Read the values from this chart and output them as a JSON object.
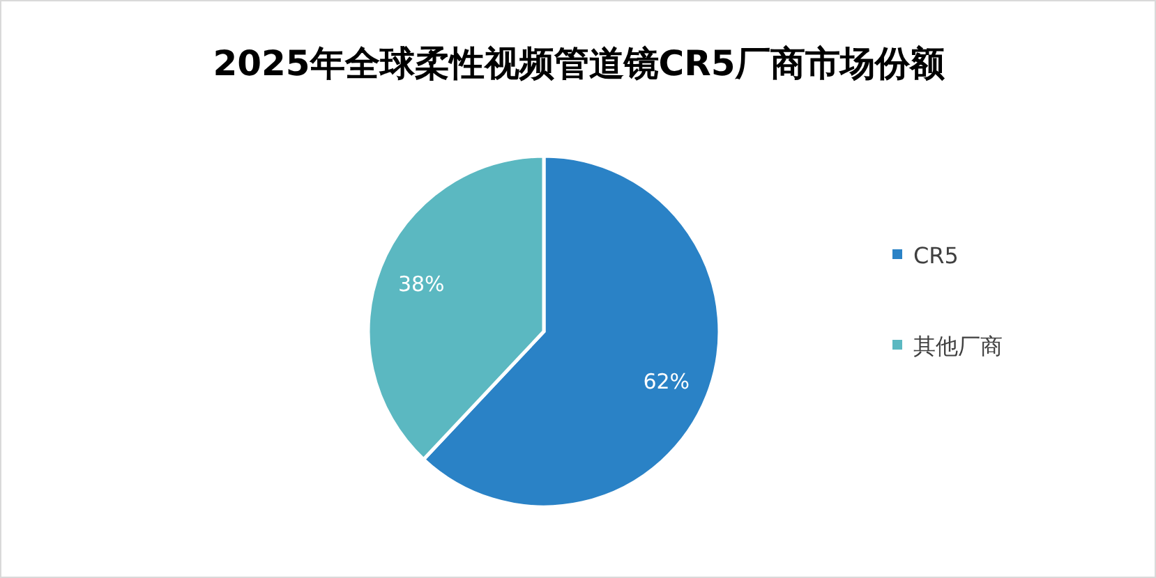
{
  "chart_data": {
    "type": "pie",
    "title": "2025年全球柔性视频管道镜CR5厂商市场份额",
    "categories": [
      "CR5",
      "其他厂商"
    ],
    "values": [
      62,
      38
    ],
    "colors": [
      "#2a82c6",
      "#5bb8c1"
    ],
    "value_labels": [
      "62%",
      "38%"
    ],
    "legend": "right"
  }
}
